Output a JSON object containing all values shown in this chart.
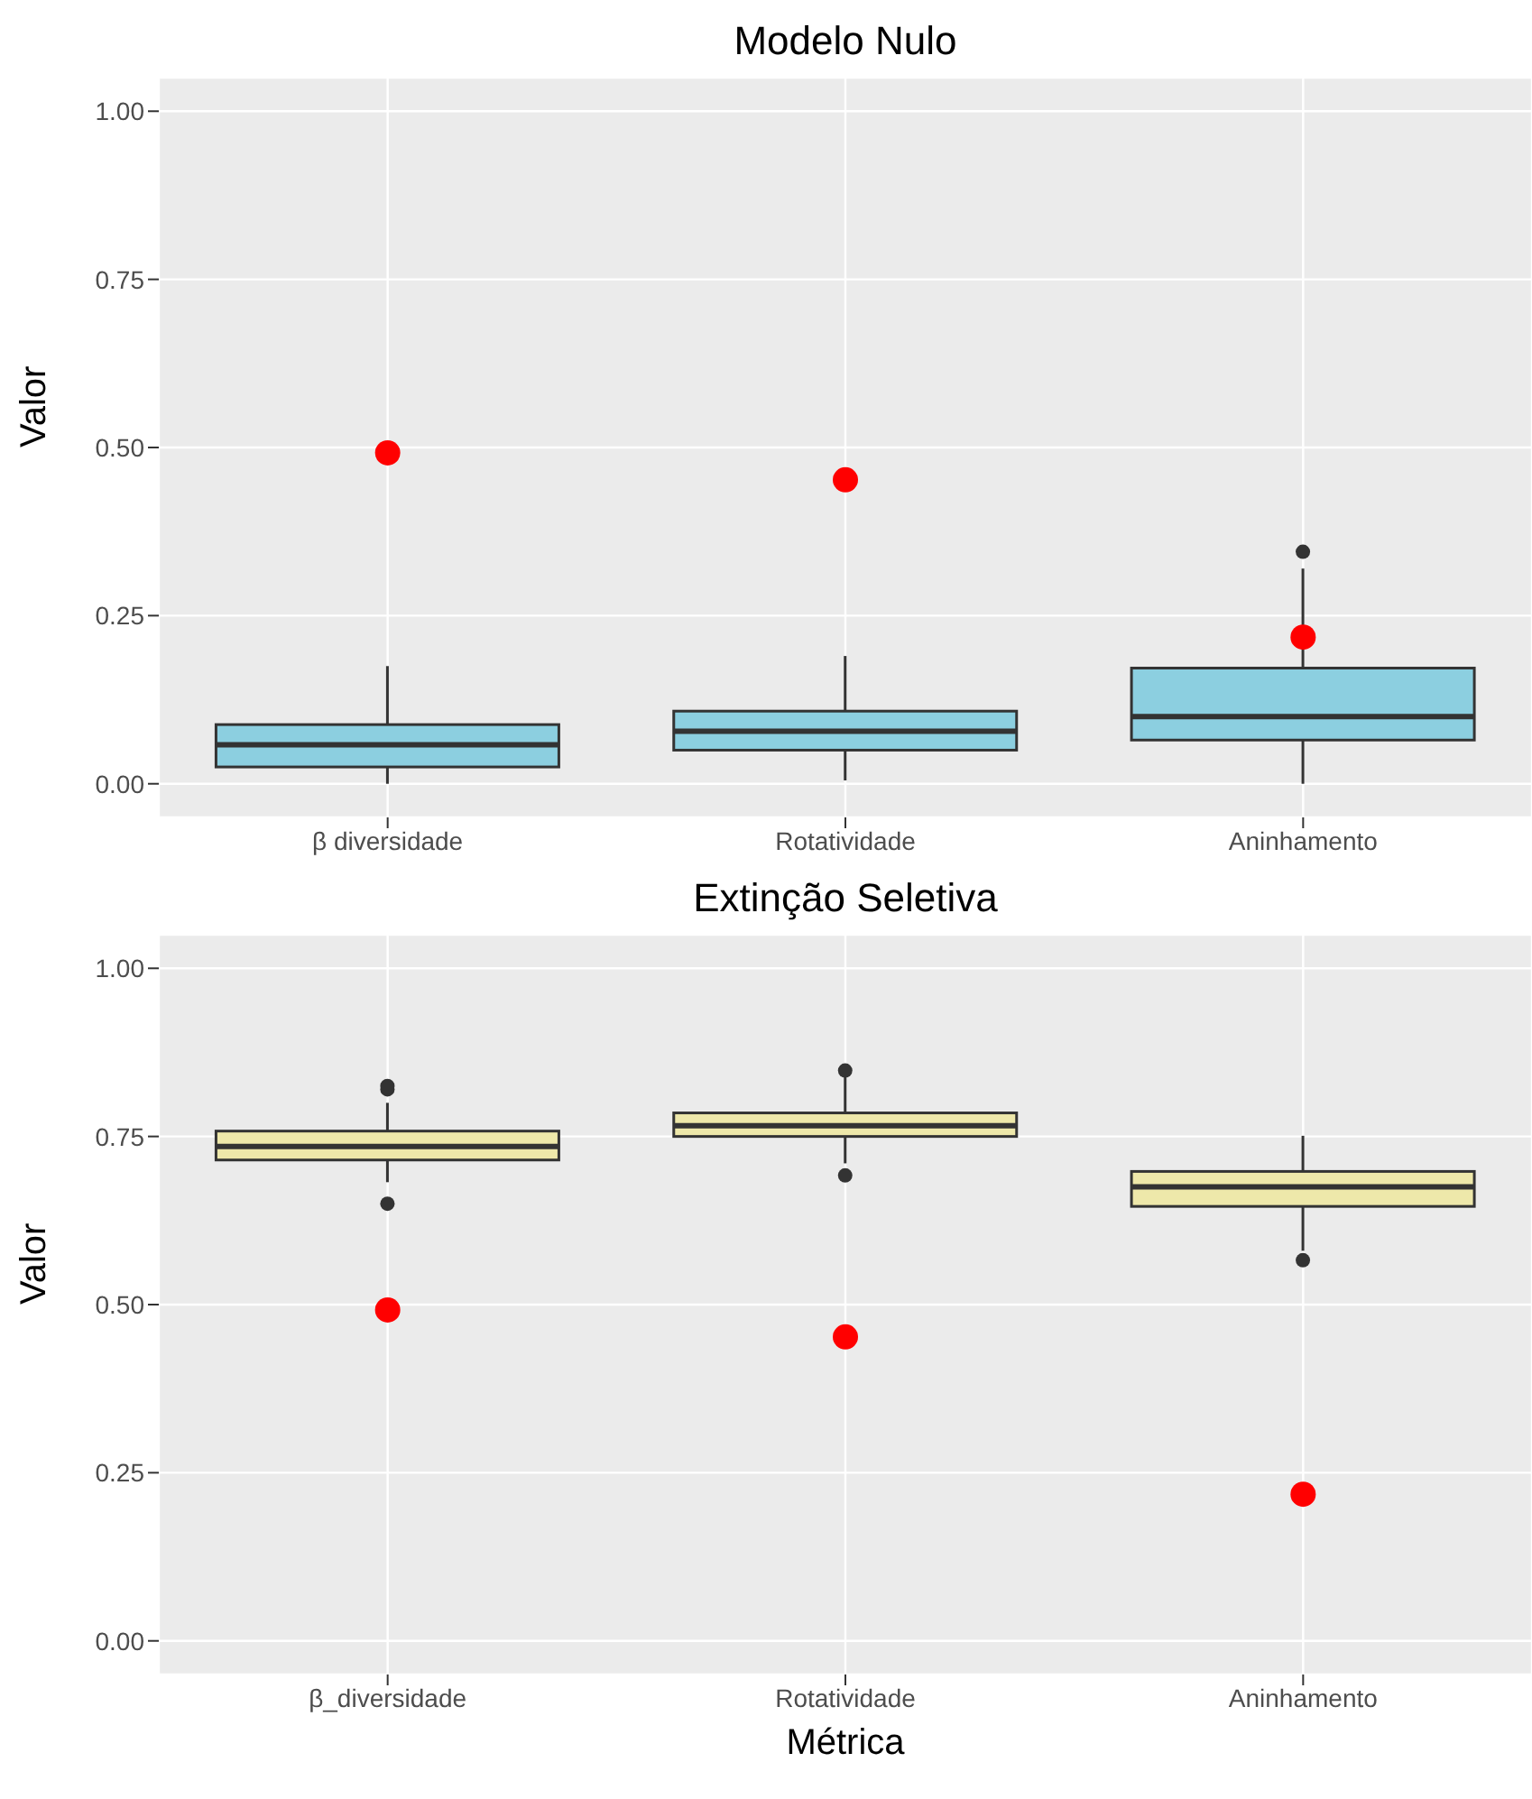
{
  "chart_data": [
    {
      "type": "box",
      "title": "Modelo Nulo",
      "ylabel": "Valor",
      "categories": [
        "β diversidade",
        "Rotatividade",
        "Aninhamento"
      ],
      "ylim": [
        -0.05,
        1.05
      ],
      "yticks": [
        {
          "value": 0,
          "label": "0.00"
        },
        {
          "value": 0.25,
          "label": "0.25"
        },
        {
          "value": 0.5,
          "label": "0.50"
        },
        {
          "value": 0.75,
          "label": "0.75"
        },
        {
          "value": 1,
          "label": "1.00"
        }
      ],
      "grid": true,
      "legend": false,
      "series": [
        {
          "color": "#8ccfe0",
          "boxes": [
            {
              "low": 0.0,
              "q1": 0.025,
              "median": 0.058,
              "q3": 0.088,
              "high": 0.175
            },
            {
              "low": 0.005,
              "q1": 0.05,
              "median": 0.078,
              "q3": 0.108,
              "high": 0.19
            },
            {
              "low": 0.0,
              "q1": 0.065,
              "median": 0.1,
              "q3": 0.172,
              "high": 0.32,
              "outliers": [
                0.345
              ]
            }
          ]
        },
        {
          "type": "scatter",
          "color": "#ff0000",
          "x": [
            "β diversidade",
            "Rotatividade",
            "Aninhamento"
          ],
          "values": [
            0.492,
            0.452,
            0.218
          ]
        }
      ]
    },
    {
      "type": "box",
      "title": "Extinção Seletiva",
      "xlabel": "Métrica",
      "ylabel": "Valor",
      "categories": [
        "β_diversidade",
        "Rotatividade",
        "Aninhamento"
      ],
      "ylim": [
        -0.05,
        1.05
      ],
      "yticks": [
        {
          "value": 0,
          "label": "0.00"
        },
        {
          "value": 0.25,
          "label": "0.25"
        },
        {
          "value": 0.5,
          "label": "0.50"
        },
        {
          "value": 0.75,
          "label": "0.75"
        },
        {
          "value": 1,
          "label": "1.00"
        }
      ],
      "grid": true,
      "legend": false,
      "series": [
        {
          "color": "#eee8aa",
          "boxes": [
            {
              "low": 0.682,
              "q1": 0.715,
              "median": 0.735,
              "q3": 0.758,
              "high": 0.8,
              "outliers": [
                0.65,
                0.82,
                0.825
              ]
            },
            {
              "low": 0.71,
              "q1": 0.75,
              "median": 0.766,
              "q3": 0.785,
              "high": 0.84,
              "outliers": [
                0.692,
                0.848
              ]
            },
            {
              "low": 0.58,
              "q1": 0.646,
              "median": 0.675,
              "q3": 0.698,
              "high": 0.751,
              "outliers": [
                0.566
              ]
            }
          ]
        },
        {
          "type": "scatter",
          "color": "#ff0000",
          "x": [
            "β_diversidade",
            "Rotatividade",
            "Aninhamento"
          ],
          "values": [
            0.492,
            0.452,
            0.218
          ]
        }
      ]
    }
  ]
}
